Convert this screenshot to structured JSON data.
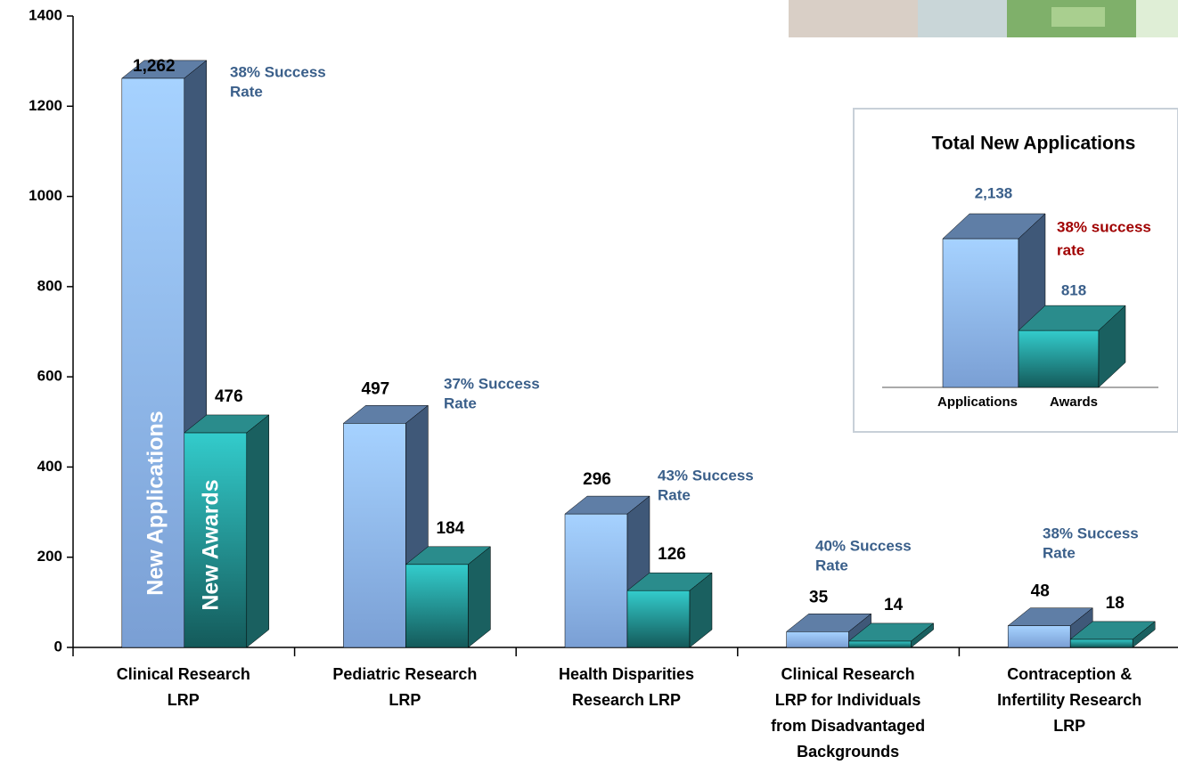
{
  "chart_data": [
    {
      "type": "bar3d",
      "categories": [
        [
          "Clinical Research",
          "LRP"
        ],
        [
          "Pediatric Research",
          "LRP"
        ],
        [
          "Health Disparities",
          "Research LRP"
        ],
        [
          "Clinical Research",
          "LRP for Individuals",
          "from Disadvantaged",
          "Backgrounds"
        ],
        [
          "Contraception &",
          "Infertility Research",
          "LRP"
        ]
      ],
      "series": [
        {
          "name": "New Applications",
          "color": "#99ccff",
          "values": [
            1262,
            497,
            296,
            35,
            48
          ],
          "value_labels": [
            "1,262",
            "497",
            "296",
            "35",
            "48"
          ]
        },
        {
          "name": "New Awards",
          "color": "#33cccc",
          "values": [
            476,
            184,
            126,
            14,
            18
          ],
          "value_labels": [
            "476",
            "184",
            "126",
            "14",
            "18"
          ]
        }
      ],
      "annotations": [
        [
          "38% Success",
          "Rate"
        ],
        [
          "37% Success",
          "Rate"
        ],
        [
          "43% Success",
          "Rate"
        ],
        [
          "40% Success",
          "Rate"
        ],
        [
          "38% Success",
          "Rate"
        ]
      ],
      "ylim": [
        0,
        1400
      ],
      "yticks": [
        0,
        200,
        400,
        600,
        800,
        1000,
        1200,
        1400
      ]
    },
    {
      "type": "bar3d",
      "title": "Total New Applications",
      "categories": [
        "Applications",
        "Awards"
      ],
      "colors": [
        "#99ccff",
        "#33cccc"
      ],
      "values": [
        2138,
        818
      ],
      "value_labels": [
        "2,138",
        "818"
      ],
      "annotation": [
        "38% success",
        "rate"
      ]
    }
  ]
}
